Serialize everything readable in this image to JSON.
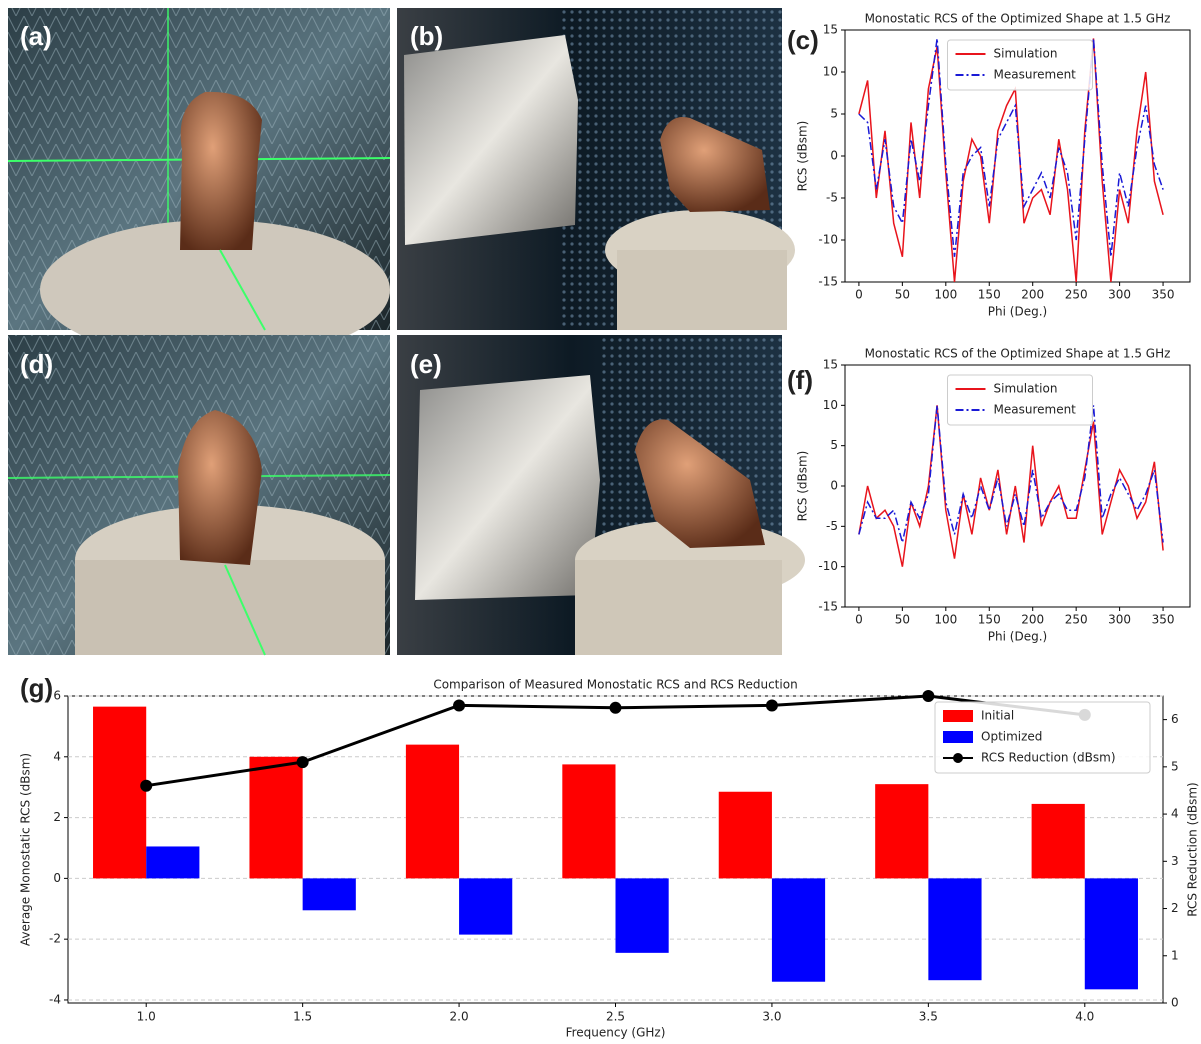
{
  "panel_labels": [
    "(a)",
    "(b)",
    "(c)",
    "(d)",
    "(e)",
    "(f)",
    "(g)"
  ],
  "chart_data": [
    {
      "type": "line",
      "title": "Monostatic RCS of the Optimized Shape at 1.5 GHz",
      "xlabel": "Phi (Deg.)",
      "ylabel": "RCS (dBsm)",
      "x": [
        0,
        10,
        20,
        30,
        40,
        50,
        60,
        70,
        80,
        90,
        100,
        110,
        120,
        130,
        140,
        150,
        160,
        170,
        180,
        190,
        200,
        210,
        220,
        230,
        240,
        250,
        260,
        270,
        280,
        290,
        300,
        310,
        320,
        330,
        340,
        350
      ],
      "series": [
        {
          "name": "Simulation",
          "color": "#e8141c",
          "dash": "none",
          "values": [
            5,
            9,
            -5,
            3,
            -8,
            -12,
            4,
            -5,
            8,
            13,
            -2,
            -15,
            -3,
            2,
            0,
            -8,
            3,
            6,
            8,
            -8,
            -5,
            -4,
            -7,
            2,
            -4,
            -15,
            3,
            14,
            -3,
            -15,
            -4,
            -8,
            3,
            10,
            -3,
            -7
          ]
        },
        {
          "name": "Measurement",
          "color": "#1a1ad6",
          "dash": "8 3 2 3",
          "values": [
            5,
            4,
            -4,
            2,
            -6,
            -8,
            2,
            -3,
            6,
            14,
            -1,
            -12,
            -2,
            0,
            1,
            -6,
            2,
            4,
            6,
            -6,
            -4,
            -2,
            -5,
            1,
            -2,
            -10,
            2,
            14,
            -1,
            -12,
            -2,
            -6,
            1,
            6,
            -1,
            -4
          ]
        }
      ],
      "xlim": [
        -16,
        381
      ],
      "xticks": [
        0,
        50,
        100,
        150,
        200,
        250,
        300,
        350
      ],
      "ylim": [
        -15,
        15
      ],
      "yticks": [
        -15,
        -10,
        -5,
        0,
        5,
        10,
        15
      ]
    },
    {
      "type": "line",
      "title": "Monostatic RCS of the Optimized Shape at 1.5 GHz",
      "xlabel": "Phi (Deg.)",
      "ylabel": "RCS (dBsm)",
      "x": [
        0,
        10,
        20,
        30,
        40,
        50,
        60,
        70,
        80,
        90,
        100,
        110,
        120,
        130,
        140,
        150,
        160,
        170,
        180,
        190,
        200,
        210,
        220,
        230,
        240,
        250,
        260,
        270,
        280,
        290,
        300,
        310,
        320,
        330,
        340,
        350
      ],
      "series": [
        {
          "name": "Simulation",
          "color": "#e8141c",
          "dash": "none",
          "values": [
            -6,
            0,
            -4,
            -3,
            -5,
            -10,
            -2,
            -5,
            0,
            10,
            -3,
            -9,
            -1,
            -6,
            1,
            -3,
            2,
            -6,
            0,
            -7,
            5,
            -5,
            -2,
            0,
            -4,
            -4,
            2,
            8,
            -6,
            -2,
            2,
            0,
            -4,
            -2,
            3,
            -8
          ]
        },
        {
          "name": "Measurement",
          "color": "#1a1ad6",
          "dash": "8 3 2 3",
          "values": [
            -6,
            -2,
            -4,
            -4,
            -3,
            -7,
            -2,
            -4,
            -1,
            10,
            -2,
            -6,
            -1,
            -4,
            0,
            -3,
            1,
            -5,
            -1,
            -5,
            2,
            -4,
            -2,
            -1,
            -3,
            -3,
            1,
            10,
            -4,
            -1,
            1,
            -1,
            -3,
            -1,
            2,
            -7
          ]
        }
      ],
      "xlim": [
        -16,
        381
      ],
      "xticks": [
        0,
        50,
        100,
        150,
        200,
        250,
        300,
        350
      ],
      "ylim": [
        -15,
        15
      ],
      "yticks": [
        -15,
        -10,
        -5,
        0,
        5,
        10,
        15
      ]
    },
    {
      "type": "bar",
      "title": "Comparison of Measured Monostatic RCS and RCS Reduction",
      "xlabel": "Frequency (GHz)",
      "ylabel": "Average Monostatic RCS (dBsm)",
      "y2label": "RCS Reduction (dBsm)",
      "categories": [
        "1.0",
        "1.5",
        "2.0",
        "2.5",
        "3.0",
        "3.5",
        "4.0"
      ],
      "series": [
        {
          "name": "Initial",
          "color": "#ff0000",
          "values": [
            5.65,
            4.0,
            4.4,
            3.75,
            2.85,
            3.1,
            2.45
          ]
        },
        {
          "name": "Optimized",
          "color": "#0000ff",
          "values": [
            1.05,
            -1.05,
            -1.85,
            -2.45,
            -3.4,
            -3.35,
            -3.65
          ]
        },
        {
          "name": "RCS Reduction (dBsm)",
          "color": "#000000",
          "type": "line",
          "axis": "y2",
          "values": [
            4.6,
            5.1,
            6.3,
            6.25,
            6.3,
            6.5,
            6.1
          ]
        }
      ],
      "ylim": [
        -4.1,
        6.0
      ],
      "yticks": [
        -4,
        -2,
        0,
        2,
        4,
        6
      ],
      "y2lim": [
        0,
        6.5
      ],
      "y2ticks": [
        0,
        1,
        2,
        3,
        4,
        5,
        6
      ],
      "grid": true
    }
  ]
}
